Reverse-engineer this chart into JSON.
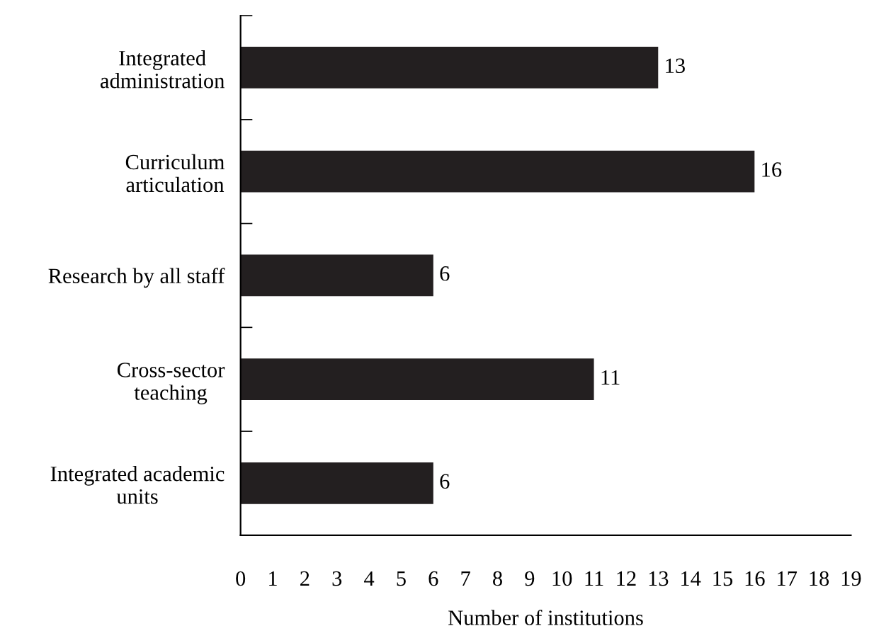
{
  "chart_data": {
    "type": "bar",
    "orientation": "horizontal",
    "xlabel": "Number of institutions",
    "categories": [
      "Integrated\nadministration",
      "Curriculum\narticulation",
      "Research by all staff",
      "Cross-sector\nteaching",
      "Integrated academic\nunits"
    ],
    "values": [
      13,
      16,
      6,
      11,
      6
    ],
    "color": "#231f20",
    "xlim": [
      0,
      19
    ],
    "xticks": [
      0,
      1,
      2,
      3,
      4,
      5,
      6,
      7,
      8,
      9,
      10,
      11,
      12,
      13,
      14,
      15,
      16,
      17,
      18,
      19
    ],
    "grid": false,
    "data_labels": true
  }
}
